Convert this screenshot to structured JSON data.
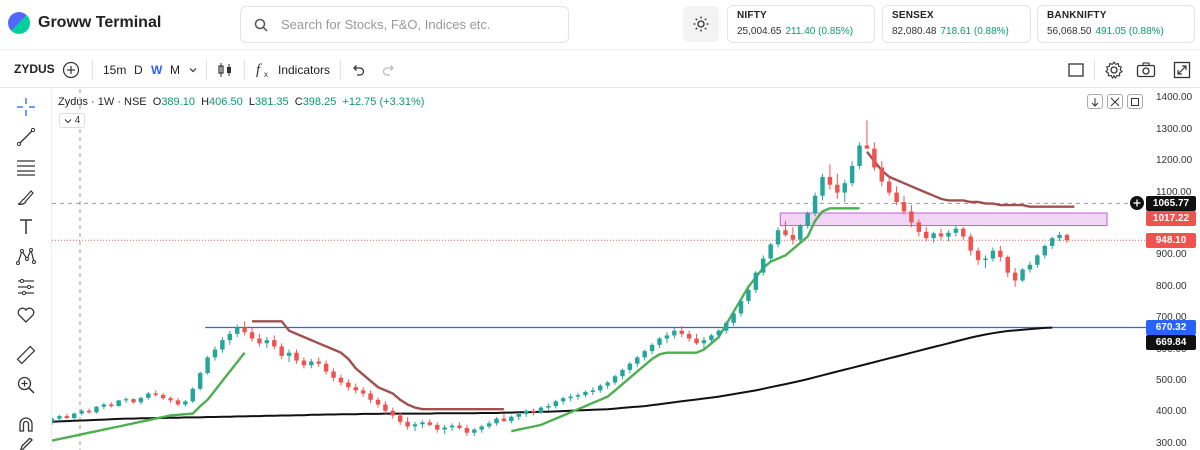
{
  "app": {
    "title": "Groww Terminal"
  },
  "search": {
    "placeholder": "Search for Stocks, F&O, Indices etc."
  },
  "indices": [
    {
      "name": "NIFTY",
      "value": "25,004.65",
      "change": "211.40 (0.85%)"
    },
    {
      "name": "SENSEX",
      "value": "82,080.48",
      "change": "718.61 (0.88%)"
    },
    {
      "name": "BANKNIFTY",
      "value": "56,068.50",
      "change": "491.05 (0.88%)"
    }
  ],
  "toolbar": {
    "symbol": "ZYDUS",
    "interval_minutes": "15m",
    "interval_day": "D",
    "interval_week": "W",
    "interval_month": "M",
    "indicators_label": "Indicators",
    "active_interval": "W"
  },
  "legend": {
    "title": "Zydus · 1W · NSE",
    "open_key": "O",
    "open": "389.10",
    "high_key": "H",
    "high": "406.50",
    "low_key": "L",
    "low": "381.35",
    "close_key": "C",
    "close": "398.25",
    "change": "+12.75 (+3.31%)",
    "indicator_count": "4"
  },
  "colors": {
    "up": "#26a69a",
    "down": "#ef5350",
    "supertrend_up": "#4caf50",
    "supertrend_down": "#a0504e",
    "ma": "#111111",
    "hline": "#2962ff",
    "zone": "#e9b8f0",
    "tag_last": "#ef5350",
    "tag_hline": "#2962ff",
    "tag_ma": "#111111",
    "tag_cross": "#111111"
  },
  "chart_data": {
    "type": "candlestick",
    "y_axis_ticks": [
      "1400.00",
      "1300.00",
      "1200.00",
      "1100.00",
      "1000.00",
      "900.00",
      "800.00",
      "700.00",
      "600.00",
      "500.00",
      "400.00",
      "300.00"
    ],
    "ylim": [
      280,
      1430
    ],
    "price_tags": {
      "crosshair": "1065.77",
      "zone_top_hidden": "1017.22",
      "last": "948.10",
      "hline": "670.32",
      "ma": "669.84"
    },
    "horizontal_line": 670.32,
    "zone": [
      995,
      1035
    ],
    "candles": [
      [
        370,
        385,
        360,
        380
      ],
      [
        380,
        392,
        372,
        388
      ],
      [
        388,
        395,
        378,
        382
      ],
      [
        382,
        400,
        375,
        396
      ],
      [
        396,
        410,
        390,
        405
      ],
      [
        405,
        412,
        395,
        400
      ],
      [
        400,
        420,
        396,
        418
      ],
      [
        418,
        430,
        410,
        425
      ],
      [
        425,
        432,
        415,
        420
      ],
      [
        420,
        440,
        418,
        438
      ],
      [
        438,
        448,
        430,
        442
      ],
      [
        442,
        445,
        428,
        432
      ],
      [
        432,
        450,
        425,
        446
      ],
      [
        446,
        465,
        440,
        460
      ],
      [
        460,
        470,
        450,
        455
      ],
      [
        455,
        462,
        440,
        445
      ],
      [
        445,
        450,
        430,
        438
      ],
      [
        438,
        445,
        420,
        425
      ],
      [
        425,
        440,
        418,
        435
      ],
      [
        435,
        480,
        430,
        475
      ],
      [
        475,
        530,
        470,
        525
      ],
      [
        525,
        580,
        520,
        575
      ],
      [
        575,
        610,
        565,
        600
      ],
      [
        600,
        640,
        590,
        630
      ],
      [
        630,
        660,
        615,
        650
      ],
      [
        650,
        680,
        640,
        670
      ],
      [
        670,
        690,
        645,
        655
      ],
      [
        655,
        670,
        625,
        635
      ],
      [
        635,
        650,
        610,
        620
      ],
      [
        620,
        640,
        605,
        630
      ],
      [
        630,
        645,
        600,
        610
      ],
      [
        610,
        620,
        570,
        580
      ],
      [
        580,
        600,
        560,
        590
      ],
      [
        590,
        600,
        555,
        565
      ],
      [
        565,
        575,
        540,
        550
      ],
      [
        550,
        570,
        540,
        562
      ],
      [
        562,
        575,
        545,
        555
      ],
      [
        555,
        565,
        520,
        530
      ],
      [
        530,
        540,
        500,
        510
      ],
      [
        510,
        520,
        485,
        495
      ],
      [
        495,
        505,
        470,
        480
      ],
      [
        480,
        492,
        460,
        470
      ],
      [
        470,
        480,
        450,
        460
      ],
      [
        460,
        470,
        430,
        440
      ],
      [
        440,
        448,
        415,
        425
      ],
      [
        425,
        435,
        395,
        405
      ],
      [
        405,
        415,
        380,
        390
      ],
      [
        390,
        400,
        360,
        370
      ],
      [
        370,
        385,
        345,
        355
      ],
      [
        355,
        370,
        340,
        362
      ],
      [
        362,
        375,
        350,
        368
      ],
      [
        368,
        378,
        355,
        360
      ],
      [
        360,
        368,
        335,
        345
      ],
      [
        345,
        360,
        330,
        352
      ],
      [
        352,
        365,
        340,
        358
      ],
      [
        358,
        368,
        345,
        350
      ],
      [
        350,
        360,
        325,
        335
      ],
      [
        335,
        350,
        325,
        345
      ],
      [
        345,
        360,
        335,
        355
      ],
      [
        355,
        372,
        348,
        365
      ],
      [
        365,
        385,
        358,
        380
      ],
      [
        380,
        395,
        370,
        372
      ],
      [
        372,
        390,
        365,
        386
      ],
      [
        386,
        400,
        375,
        395
      ],
      [
        395,
        410,
        385,
        405
      ],
      [
        405,
        412,
        390,
        400
      ],
      [
        400,
        420,
        395,
        415
      ],
      [
        415,
        428,
        405,
        420
      ],
      [
        420,
        440,
        412,
        435
      ],
      [
        435,
        450,
        425,
        445
      ],
      [
        445,
        458,
        435,
        450
      ],
      [
        450,
        462,
        440,
        455
      ],
      [
        455,
        470,
        448,
        465
      ],
      [
        465,
        480,
        455,
        470
      ],
      [
        470,
        490,
        462,
        485
      ],
      [
        485,
        500,
        475,
        495
      ],
      [
        495,
        520,
        488,
        515
      ],
      [
        515,
        540,
        505,
        535
      ],
      [
        535,
        560,
        525,
        555
      ],
      [
        555,
        580,
        545,
        575
      ],
      [
        575,
        600,
        565,
        595
      ],
      [
        595,
        620,
        585,
        615
      ],
      [
        615,
        640,
        605,
        635
      ],
      [
        635,
        655,
        620,
        645
      ],
      [
        645,
        670,
        635,
        660
      ],
      [
        660,
        675,
        640,
        650
      ],
      [
        650,
        660,
        625,
        635
      ],
      [
        635,
        650,
        615,
        620
      ],
      [
        620,
        640,
        605,
        630
      ],
      [
        630,
        650,
        620,
        645
      ],
      [
        645,
        665,
        635,
        660
      ],
      [
        660,
        690,
        650,
        685
      ],
      [
        685,
        720,
        675,
        715
      ],
      [
        715,
        760,
        705,
        755
      ],
      [
        755,
        800,
        745,
        790
      ],
      [
        790,
        850,
        780,
        845
      ],
      [
        845,
        900,
        835,
        890
      ],
      [
        890,
        940,
        880,
        935
      ],
      [
        935,
        990,
        925,
        980
      ],
      [
        980,
        1010,
        960,
        965
      ],
      [
        965,
        990,
        935,
        950
      ],
      [
        950,
        1000,
        940,
        995
      ],
      [
        995,
        1040,
        985,
        1035
      ],
      [
        1035,
        1100,
        1025,
        1090
      ],
      [
        1090,
        1160,
        1075,
        1150
      ],
      [
        1150,
        1190,
        1110,
        1125
      ],
      [
        1125,
        1160,
        1080,
        1100
      ],
      [
        1100,
        1140,
        1070,
        1130
      ],
      [
        1130,
        1200,
        1120,
        1185
      ],
      [
        1185,
        1260,
        1175,
        1250
      ],
      [
        1250,
        1330,
        1240,
        1240
      ],
      [
        1240,
        1260,
        1170,
        1180
      ],
      [
        1180,
        1200,
        1120,
        1135
      ],
      [
        1135,
        1150,
        1090,
        1100
      ],
      [
        1100,
        1120,
        1060,
        1070
      ],
      [
        1070,
        1090,
        1030,
        1040
      ],
      [
        1040,
        1060,
        990,
        1005
      ],
      [
        1005,
        1015,
        960,
        975
      ],
      [
        975,
        990,
        945,
        955
      ],
      [
        955,
        975,
        940,
        970
      ],
      [
        970,
        985,
        950,
        960
      ],
      [
        960,
        980,
        945,
        972
      ],
      [
        972,
        995,
        960,
        985
      ],
      [
        985,
        990,
        950,
        960
      ],
      [
        960,
        970,
        900,
        915
      ],
      [
        915,
        925,
        870,
        885
      ],
      [
        885,
        900,
        860,
        890
      ],
      [
        890,
        925,
        880,
        915
      ],
      [
        915,
        930,
        880,
        895
      ],
      [
        895,
        900,
        830,
        845
      ],
      [
        845,
        860,
        800,
        820
      ],
      [
        820,
        860,
        815,
        855
      ],
      [
        855,
        880,
        845,
        870
      ],
      [
        870,
        905,
        860,
        900
      ],
      [
        900,
        935,
        890,
        930
      ],
      [
        930,
        960,
        920,
        955
      ],
      [
        955,
        975,
        945,
        965
      ],
      [
        965,
        970,
        940,
        948
      ]
    ],
    "supertrend": [
      [
        310,
        null
      ],
      [
        315,
        null
      ],
      [
        320,
        null
      ],
      [
        325,
        null
      ],
      [
        330,
        null
      ],
      [
        335,
        null
      ],
      [
        340,
        null
      ],
      [
        345,
        null
      ],
      [
        350,
        null
      ],
      [
        355,
        null
      ],
      [
        360,
        null
      ],
      [
        365,
        null
      ],
      [
        370,
        null
      ],
      [
        375,
        null
      ],
      [
        380,
        null
      ],
      [
        385,
        null
      ],
      [
        390,
        null
      ],
      [
        392,
        null
      ],
      [
        394,
        null
      ],
      [
        396,
        null
      ],
      [
        420,
        null
      ],
      [
        440,
        null
      ],
      [
        470,
        null
      ],
      [
        500,
        null
      ],
      [
        530,
        null
      ],
      [
        560,
        null
      ],
      [
        590,
        null
      ],
      [
        null,
        690
      ],
      [
        null,
        690
      ],
      [
        null,
        690
      ],
      [
        null,
        690
      ],
      [
        null,
        690
      ],
      [
        null,
        660
      ],
      [
        null,
        650
      ],
      [
        null,
        640
      ],
      [
        null,
        630
      ],
      [
        null,
        620
      ],
      [
        null,
        610
      ],
      [
        null,
        600
      ],
      [
        null,
        590
      ],
      [
        null,
        570
      ],
      [
        null,
        540
      ],
      [
        null,
        520
      ],
      [
        null,
        500
      ],
      [
        null,
        480
      ],
      [
        null,
        470
      ],
      [
        null,
        460
      ],
      [
        null,
        440
      ],
      [
        null,
        425
      ],
      [
        null,
        415
      ],
      [
        null,
        410
      ],
      [
        null,
        410
      ],
      [
        null,
        410
      ],
      [
        null,
        410
      ],
      [
        null,
        410
      ],
      [
        null,
        410
      ],
      [
        null,
        410
      ],
      [
        null,
        410
      ],
      [
        null,
        410
      ],
      [
        null,
        410
      ],
      [
        null,
        410
      ],
      [
        null,
        410
      ],
      [
        340,
        null
      ],
      [
        345,
        null
      ],
      [
        350,
        null
      ],
      [
        355,
        null
      ],
      [
        360,
        null
      ],
      [
        370,
        null
      ],
      [
        380,
        null
      ],
      [
        390,
        null
      ],
      [
        400,
        null
      ],
      [
        410,
        null
      ],
      [
        420,
        null
      ],
      [
        430,
        null
      ],
      [
        440,
        null
      ],
      [
        450,
        null
      ],
      [
        470,
        null
      ],
      [
        490,
        null
      ],
      [
        510,
        null
      ],
      [
        530,
        null
      ],
      [
        550,
        null
      ],
      [
        570,
        null
      ],
      [
        585,
        null
      ],
      [
        590,
        null
      ],
      [
        590,
        null
      ],
      [
        590,
        null
      ],
      [
        590,
        null
      ],
      [
        590,
        null
      ],
      [
        600,
        null
      ],
      [
        620,
        null
      ],
      [
        640,
        null
      ],
      [
        680,
        null
      ],
      [
        720,
        null
      ],
      [
        760,
        null
      ],
      [
        800,
        null
      ],
      [
        830,
        null
      ],
      [
        860,
        null
      ],
      [
        880,
        null
      ],
      [
        890,
        null
      ],
      [
        900,
        null
      ],
      [
        920,
        null
      ],
      [
        940,
        null
      ],
      [
        960,
        null
      ],
      [
        1010,
        null
      ],
      [
        1040,
        null
      ],
      [
        1050,
        null
      ],
      [
        1050,
        null
      ],
      [
        1050,
        null
      ],
      [
        1050,
        null
      ],
      [
        1050,
        null
      ],
      [
        null,
        1230
      ],
      [
        null,
        1200
      ],
      [
        null,
        1170
      ],
      [
        null,
        1150
      ],
      [
        null,
        1140
      ],
      [
        null,
        1130
      ],
      [
        null,
        1120
      ],
      [
        null,
        1110
      ],
      [
        null,
        1100
      ],
      [
        null,
        1090
      ],
      [
        null,
        1080
      ],
      [
        null,
        1075
      ],
      [
        null,
        1075
      ],
      [
        null,
        1075
      ],
      [
        null,
        1070
      ],
      [
        null,
        1070
      ],
      [
        null,
        1065
      ],
      [
        null,
        1065
      ],
      [
        null,
        1060
      ],
      [
        null,
        1060
      ],
      [
        null,
        1060
      ],
      [
        null,
        1060
      ],
      [
        null,
        1055
      ],
      [
        null,
        1055
      ],
      [
        null,
        1055
      ],
      [
        null,
        1055
      ],
      [
        null,
        1055
      ],
      [
        null,
        1055
      ],
      [
        null,
        1055
      ]
    ],
    "moving_average": [
      370,
      371,
      372,
      373,
      374,
      375,
      376,
      377,
      378,
      379,
      380,
      380,
      381,
      381,
      382,
      382,
      383,
      383,
      384,
      384,
      384,
      385,
      385,
      386,
      386,
      387,
      387,
      388,
      388,
      389,
      389,
      390,
      390,
      391,
      391,
      392,
      392,
      393,
      393,
      394,
      394,
      394,
      395,
      395,
      395,
      396,
      396,
      396,
      396,
      396,
      396,
      396,
      397,
      397,
      397,
      397,
      397,
      397,
      398,
      398,
      398,
      399,
      399,
      400,
      400,
      401,
      402,
      402,
      403,
      404,
      405,
      406,
      407,
      408,
      409,
      410,
      412,
      414,
      416,
      418,
      420,
      423,
      426,
      429,
      432,
      435,
      438,
      441,
      444,
      447,
      450,
      454,
      458,
      462,
      466,
      470,
      475,
      480,
      485,
      490,
      495,
      500,
      506,
      512,
      518,
      524,
      530,
      536,
      542,
      548,
      554,
      560,
      566,
      572,
      578,
      584,
      590,
      596,
      602,
      608,
      614,
      620,
      626,
      632,
      638,
      643,
      648,
      652,
      656,
      659,
      661,
      663,
      665,
      667,
      669,
      669.84
    ]
  }
}
